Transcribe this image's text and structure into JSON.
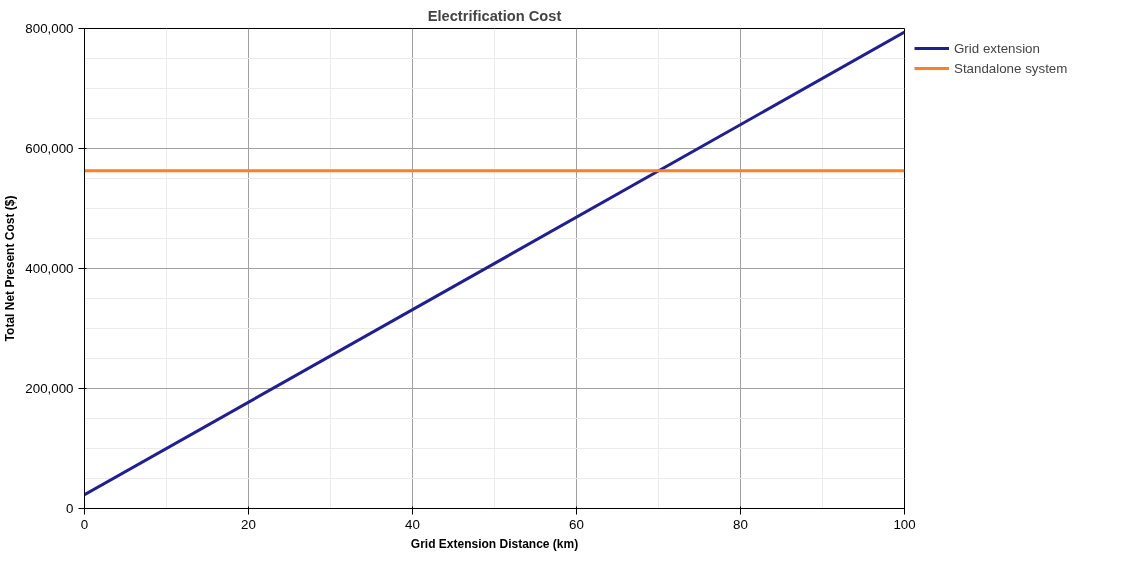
{
  "chart_data": {
    "type": "line",
    "title": "Electrification Cost",
    "xlabel": "Grid Extension Distance (km)",
    "ylabel": "Total Net Present Cost ($)",
    "series": [
      {
        "name": "Grid extension",
        "color": "#1f1f8f",
        "values": [
          23000,
          794000
        ]
      },
      {
        "name": "Standalone system",
        "color": "#ff7f27",
        "values": [
          563000,
          563000
        ]
      }
    ],
    "x": [
      0,
      100
    ],
    "xlim": [
      0,
      100
    ],
    "xticks": [
      0,
      20,
      40,
      60,
      80,
      100
    ],
    "ylim": [
      0,
      800000
    ],
    "yticks": [
      0,
      {
        "value": 200000,
        "label": "200,000"
      },
      {
        "value": 400000,
        "label": "400,000"
      },
      {
        "value": 600000,
        "label": "600,000"
      },
      {
        "value": 800000,
        "label": "800,000"
      }
    ],
    "grid": true,
    "legend": "top right",
    "line_style": "solid",
    "marker": "none"
  }
}
